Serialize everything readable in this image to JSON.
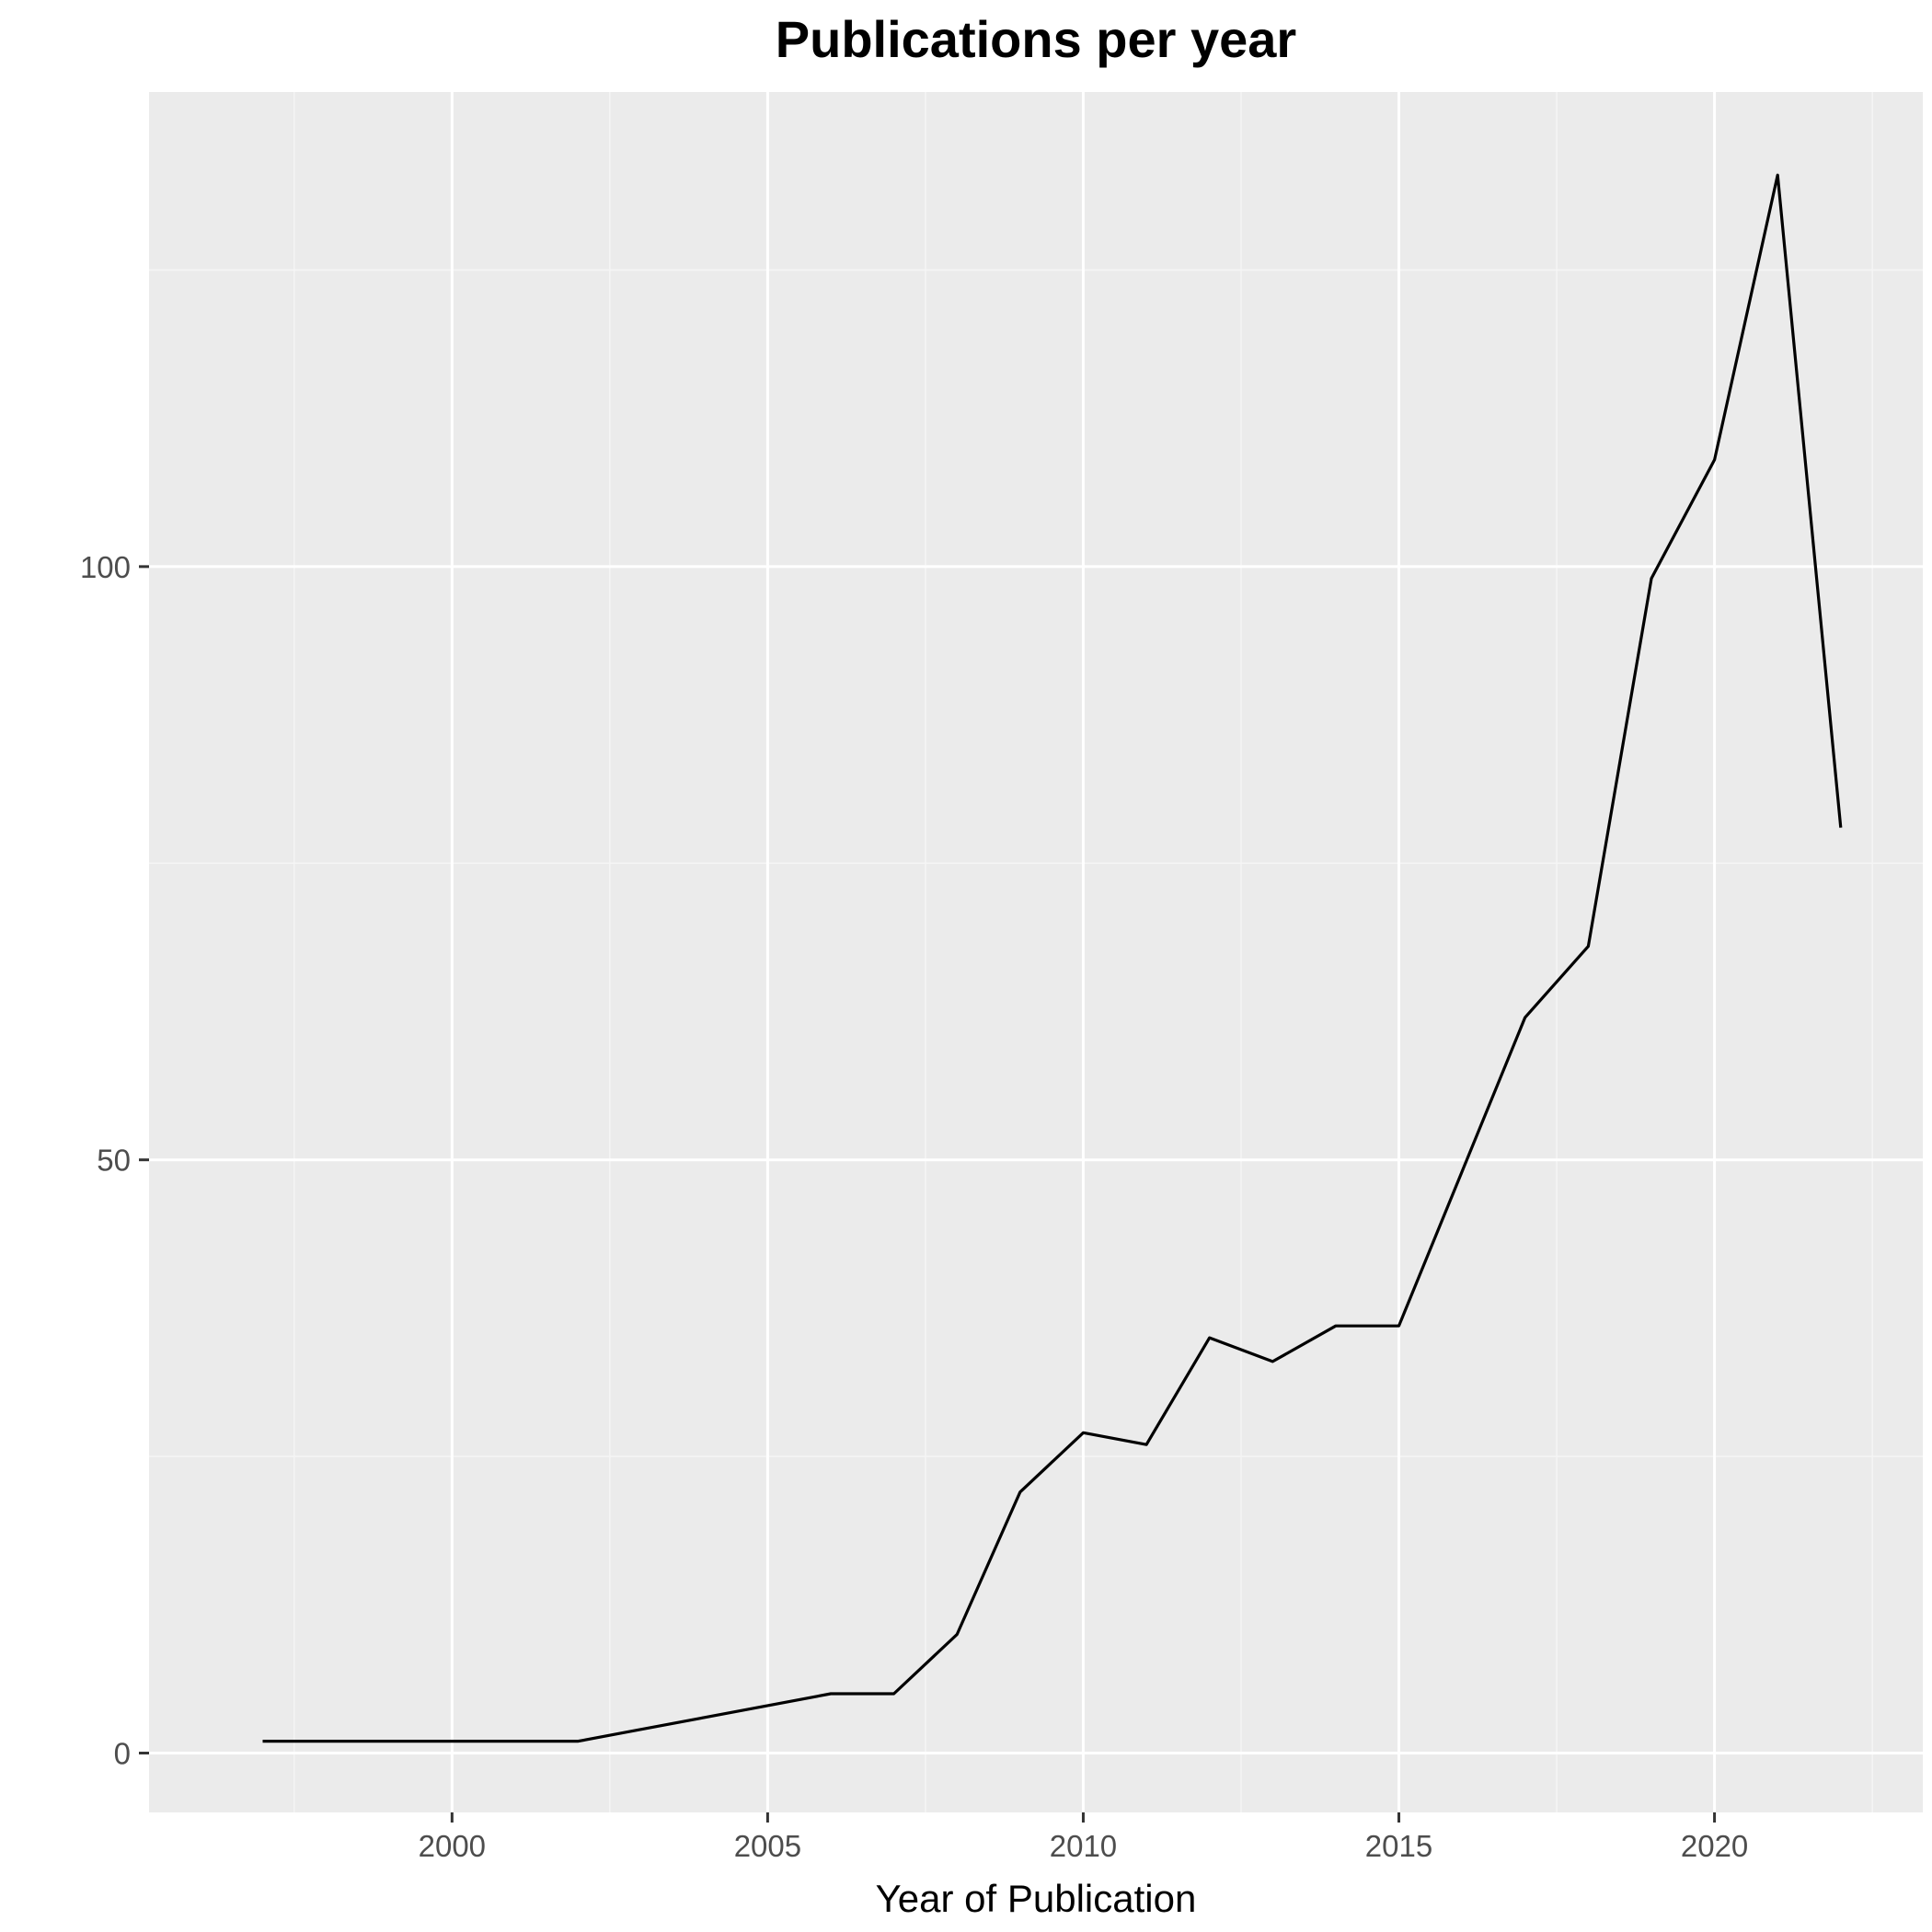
{
  "chart_data": {
    "type": "line",
    "title": "Publications per year",
    "xlabel": "Year of Publication",
    "ylabel": "",
    "x": [
      1997,
      2002,
      2003,
      2004,
      2005,
      2006,
      2007,
      2008,
      2009,
      2010,
      2011,
      2012,
      2013,
      2014,
      2015,
      2016,
      2017,
      2018,
      2019,
      2020,
      2021,
      2022
    ],
    "series": [
      {
        "values": [
          1,
          1,
          2,
          3,
          4,
          5,
          5,
          10,
          22,
          27,
          26,
          35,
          33,
          36,
          36,
          49,
          62,
          68,
          99,
          109,
          133,
          78
        ]
      }
    ],
    "xlim": [
      1995.2,
      2023.3
    ],
    "ylim": [
      -5,
      140
    ],
    "x_ticks": [
      2000,
      2005,
      2010,
      2015,
      2020
    ],
    "x_tick_labels": [
      "2000",
      "2005",
      "2010",
      "2015",
      "2020"
    ],
    "y_ticks": [
      0,
      50,
      100
    ],
    "y_tick_labels": [
      "0",
      "50",
      "100"
    ],
    "grid": true,
    "legend": "none",
    "colors": {
      "panel_background": "#EBEBEB",
      "grid_major": "#FFFFFF",
      "grid_minor": "#F5F5F5",
      "line": "#000000",
      "tick_label": "#4D4D4D",
      "tick_mark": "#333333"
    }
  }
}
